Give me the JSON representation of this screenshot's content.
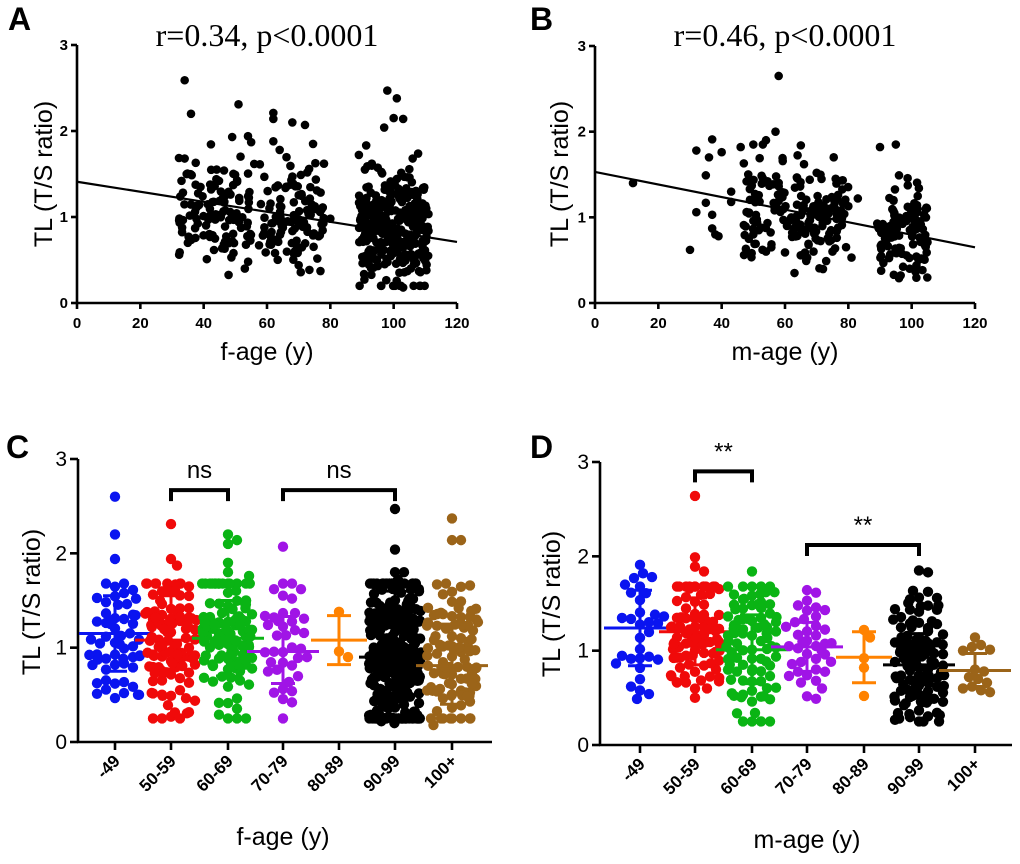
{
  "figure": {
    "panels": [
      "A",
      "B",
      "C",
      "D"
    ]
  },
  "chart_data": [
    {
      "id": "A",
      "type": "scatter",
      "panel_label": "A",
      "title": "r=0.34, p<0.0001",
      "xlabel": "f-age (y)",
      "ylabel": "TL (T/S ratio)",
      "xlim": [
        0,
        120
      ],
      "ylim": [
        0,
        3
      ],
      "xticks": [
        "0",
        "20",
        "40",
        "60",
        "80",
        "100",
        "120"
      ],
      "yticks": [
        "0",
        "1",
        "2",
        "3"
      ],
      "regression": {
        "x": [
          0,
          120
        ],
        "y": [
          1.41,
          0.71
        ]
      },
      "clusters": [
        {
          "x_range": [
            32,
            78
          ],
          "y_mean": 1.05,
          "y_sd": 0.3,
          "n": 230
        },
        {
          "x_range": [
            89,
            111
          ],
          "y_mean": 0.85,
          "y_sd": 0.32,
          "n": 330
        }
      ],
      "points": [
        [
          34,
          2.59
        ],
        [
          36,
          2.2
        ],
        [
          51,
          2.31
        ],
        [
          62,
          2.21
        ],
        [
          62,
          2.14
        ],
        [
          68,
          2.1
        ],
        [
          72,
          2.07
        ],
        [
          98,
          2.47
        ],
        [
          101,
          2.38
        ],
        [
          100,
          2.15
        ],
        [
          103,
          2.14
        ],
        [
          97,
          2.04
        ],
        [
          34,
          1.68
        ],
        [
          49,
          1.93
        ],
        [
          54,
          1.94
        ],
        [
          55,
          1.87
        ],
        [
          62,
          1.88
        ],
        [
          64,
          1.78
        ],
        [
          78,
          1.62
        ],
        [
          80,
          0.98
        ],
        [
          106,
          1.68
        ],
        [
          33,
          1.42
        ],
        [
          39,
          1.35
        ],
        [
          35,
          0.7
        ],
        [
          41,
          0.51
        ],
        [
          53,
          0.4
        ],
        [
          70,
          0.44
        ],
        [
          96,
          0.2
        ],
        [
          103,
          0.18
        ],
        [
          108,
          0.37
        ],
        [
          110,
          0.85
        ],
        [
          111,
          0.84
        ]
      ]
    },
    {
      "id": "B",
      "type": "scatter",
      "panel_label": "B",
      "title": "r=0.46, p<0.0001",
      "xlabel": "m-age (y)",
      "ylabel": "TL (T/S ratio)",
      "xlim": [
        0,
        120
      ],
      "ylim": [
        0,
        3
      ],
      "xticks": [
        "0",
        "20",
        "40",
        "60",
        "80",
        "100",
        "120"
      ],
      "yticks": [
        "0",
        "1",
        "2",
        "3"
      ],
      "regression": {
        "x": [
          0,
          120
        ],
        "y": [
          1.53,
          0.65
        ]
      },
      "clusters": [
        {
          "x_range": [
            47,
            80
          ],
          "y_mean": 1.05,
          "y_sd": 0.27,
          "n": 170
        },
        {
          "x_range": [
            89,
            105
          ],
          "y_mean": 0.82,
          "y_sd": 0.25,
          "n": 110
        }
      ],
      "points": [
        [
          12,
          1.4
        ],
        [
          30,
          0.62
        ],
        [
          32,
          1.78
        ],
        [
          32,
          1.06
        ],
        [
          35,
          1.17
        ],
        [
          35,
          1.49
        ],
        [
          36,
          1.7
        ],
        [
          37,
          1.91
        ],
        [
          37,
          1.03
        ],
        [
          37,
          0.87
        ],
        [
          38,
          0.8
        ],
        [
          39,
          0.78
        ],
        [
          40,
          1.76
        ],
        [
          43,
          1.3
        ],
        [
          43,
          1.18
        ],
        [
          46,
          1.82
        ],
        [
          47,
          1.63
        ],
        [
          47,
          0.91
        ],
        [
          50,
          1.85
        ],
        [
          50,
          0.8
        ],
        [
          52,
          1.69
        ],
        [
          54,
          1.9
        ],
        [
          54,
          0.6
        ],
        [
          57,
          2.0
        ],
        [
          58,
          2.65
        ],
        [
          60,
          0.59
        ],
        [
          63,
          0.35
        ],
        [
          65,
          1.84
        ],
        [
          66,
          1.62
        ],
        [
          67,
          0.53
        ],
        [
          69,
          0.6
        ],
        [
          70,
          1.52
        ],
        [
          73,
          0.49
        ],
        [
          74,
          0.72
        ],
        [
          75,
          0.6
        ],
        [
          76,
          1.45
        ],
        [
          78,
          1.43
        ],
        [
          80,
          1.13
        ],
        [
          81,
          0.53
        ],
        [
          83,
          1.22
        ],
        [
          90,
          1.82
        ],
        [
          95,
          1.85
        ],
        [
          96,
          0.29
        ],
        [
          96,
          1.49
        ],
        [
          103,
          0.76
        ],
        [
          105,
          0.71
        ]
      ]
    },
    {
      "id": "C",
      "type": "scatter",
      "subtype": "dot-plot-mean-sd",
      "panel_label": "C",
      "xlabel": "f-age (y)",
      "ylabel": "TL (T/S ratio)",
      "ylim": [
        0,
        3
      ],
      "yticks": [
        "0",
        "1",
        "2",
        "3"
      ],
      "categories": [
        "-49",
        "50-59",
        "60-69",
        "70-79",
        "80-89",
        "90-99",
        "100+"
      ],
      "colors": [
        "#0a14f0",
        "#f00a0a",
        "#0ab414",
        "#a014e6",
        "#ff8200",
        "#000000",
        "#9b6419"
      ],
      "groups": [
        {
          "category": "-49",
          "mean": 1.15,
          "sd_low": 0.75,
          "sd_high": 1.55,
          "n": 55,
          "outliers": [
            2.6,
            2.2,
            1.94,
            0.5,
            0.5
          ]
        },
        {
          "category": "50-59",
          "mean": 1.08,
          "sd_low": 0.7,
          "sd_high": 1.55,
          "n": 110,
          "outliers": [
            2.31,
            1.94,
            1.87,
            0.39,
            0.49,
            0.52
          ]
        },
        {
          "category": "60-69",
          "mean": 1.1,
          "sd_low": 0.7,
          "sd_high": 1.5,
          "n": 120,
          "outliers": [
            2.2,
            2.14,
            2.1,
            1.9,
            1.8,
            1.76
          ]
        },
        {
          "category": "70-79",
          "mean": 0.96,
          "sd_low": 0.62,
          "sd_high": 1.33,
          "n": 35,
          "outliers": [
            2.07,
            1.62,
            1.62,
            1.52,
            0.42
          ]
        },
        {
          "category": "80-89",
          "mean": 1.08,
          "sd_low": 0.82,
          "sd_high": 1.34,
          "n": 3,
          "values": [
            1.38,
            0.96,
            0.9
          ]
        },
        {
          "category": "90-99",
          "mean": 0.9,
          "sd_low": 0.55,
          "sd_high": 1.6,
          "n": 330,
          "outliers": [
            2.47,
            2.04,
            1.8,
            1.8,
            1.72,
            0.2,
            0.22
          ]
        },
        {
          "category": "100+",
          "mean": 0.81,
          "sd_low": 0.4,
          "sd_high": 1.25,
          "n": 100,
          "outliers": [
            2.37,
            2.14,
            2.14,
            1.67,
            1.66,
            1.42,
            0.18
          ]
        }
      ],
      "comparisons": [
        {
          "from": "50-59",
          "to": "60-69",
          "label": "ns",
          "level": 2.67
        },
        {
          "from": "70-79",
          "to": "90-99",
          "label": "ns",
          "level": 2.67
        }
      ]
    },
    {
      "id": "D",
      "type": "scatter",
      "subtype": "dot-plot-mean-sd",
      "panel_label": "D",
      "xlabel": "m-age (y)",
      "ylabel": "TL (T/S ratio)",
      "ylim": [
        0,
        3
      ],
      "yticks": [
        "0",
        "1",
        "2",
        "3"
      ],
      "categories": [
        "-49",
        "50-59",
        "60-69",
        "70-79",
        "80-89",
        "90-99",
        "100+"
      ],
      "colors": [
        "#0a14f0",
        "#f00a0a",
        "#0ab414",
        "#a014e6",
        "#ff8200",
        "#000000",
        "#9b6419"
      ],
      "groups": [
        {
          "category": "-49",
          "mean": 1.24,
          "sd_low": 0.84,
          "sd_high": 1.64,
          "n": 26,
          "outliers": [
            1.91,
            1.82,
            1.77,
            1.78,
            1.7,
            0.62
          ]
        },
        {
          "category": "50-59",
          "mean": 1.2,
          "sd_low": 0.85,
          "sd_high": 1.56,
          "n": 90,
          "outliers": [
            2.64,
            1.99,
            1.89,
            1.84,
            1.68,
            0.6,
            0.73
          ]
        },
        {
          "category": "60-69",
          "mean": 1.01,
          "sd_low": 0.65,
          "sd_high": 1.38,
          "n": 85,
          "outliers": [
            1.84,
            1.62,
            1.62,
            1.6,
            1.55,
            0.34
          ]
        },
        {
          "category": "70-79",
          "mean": 1.04,
          "sd_low": 0.78,
          "sd_high": 1.3,
          "n": 35,
          "outliers": [
            1.53,
            1.48,
            1.43,
            0.49,
            0.6
          ]
        },
        {
          "category": "80-89",
          "mean": 0.93,
          "sd_low": 0.66,
          "sd_high": 1.2,
          "n": 5,
          "values": [
            1.22,
            1.14,
            0.92,
            0.82,
            0.52
          ]
        },
        {
          "category": "90-99",
          "mean": 0.85,
          "sd_low": 0.5,
          "sd_high": 1.18,
          "n": 120,
          "outliers": [
            1.85,
            1.83,
            1.48,
            1.47,
            1.32,
            1.33,
            0.28
          ]
        },
        {
          "category": "100+",
          "mean": 0.79,
          "sd_low": 0.62,
          "sd_high": 0.97,
          "n": 14,
          "values": [
            1.14,
            1.06,
            1.04,
            1.0,
            1.01,
            0.8,
            0.78,
            0.72,
            0.7,
            0.66,
            0.62,
            0.6,
            0.58,
            0.56
          ]
        }
      ],
      "comparisons": [
        {
          "from": "50-59",
          "to": "60-69",
          "label": "**",
          "level": 2.9
        },
        {
          "from": "70-79",
          "to": "90-99",
          "label": "**",
          "level": 2.12
        }
      ]
    }
  ]
}
